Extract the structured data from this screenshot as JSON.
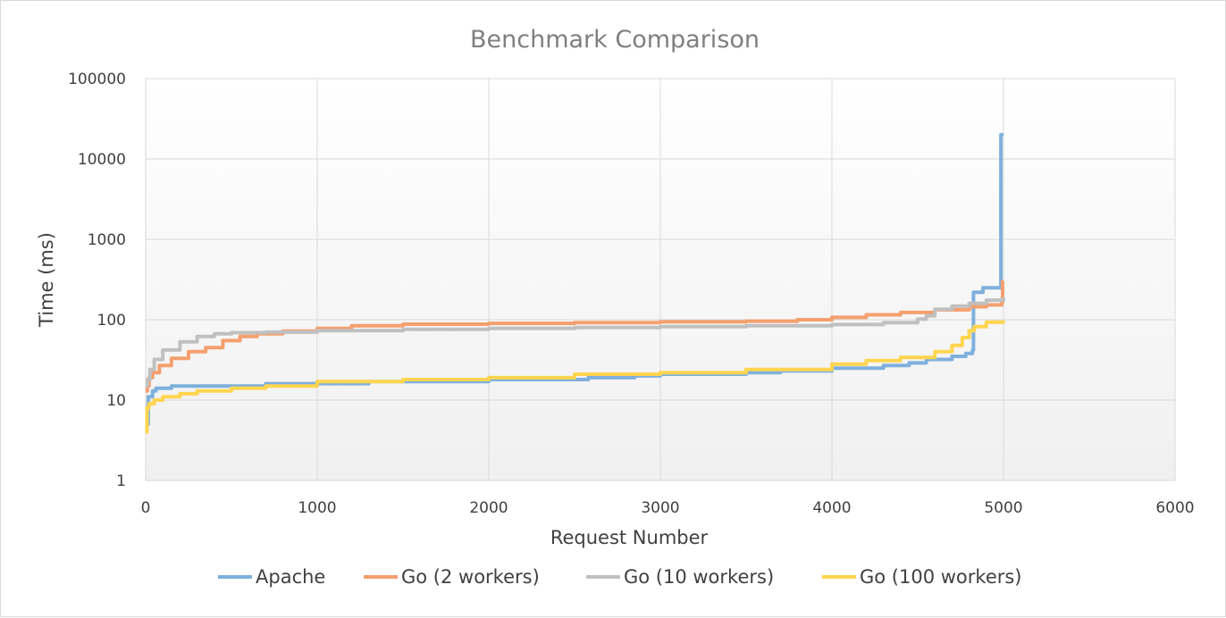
{
  "chart_data": {
    "type": "line",
    "title": "Benchmark Comparison",
    "xlabel": "Request Number",
    "ylabel": "Time (ms)",
    "xlim": [
      0,
      6000
    ],
    "ylim": [
      1,
      100000
    ],
    "yscale": "log",
    "grid": true,
    "legend_position": "bottom",
    "x_ticks": [
      0,
      1000,
      2000,
      3000,
      4000,
      5000,
      6000
    ],
    "x_tick_labels": [
      "0",
      "1000",
      "2000",
      "3000",
      "4000",
      "5000",
      "6000"
    ],
    "y_ticks": [
      1,
      10,
      100,
      1000,
      10000,
      100000
    ],
    "y_tick_labels": [
      "1",
      "10",
      "100",
      "1000",
      "10000",
      "100000"
    ],
    "series": [
      {
        "name": "Apache",
        "color": "#7fb0dc",
        "points": [
          [
            0,
            5
          ],
          [
            15,
            5
          ],
          [
            15,
            11
          ],
          [
            40,
            13
          ],
          [
            60,
            14
          ],
          [
            150,
            15
          ],
          [
            600,
            15
          ],
          [
            700,
            16
          ],
          [
            1000,
            16
          ],
          [
            1200,
            16
          ],
          [
            1300,
            17
          ],
          [
            1500,
            17
          ],
          [
            2000,
            18
          ],
          [
            2500,
            18
          ],
          [
            2580,
            19
          ],
          [
            2800,
            19
          ],
          [
            2850,
            20
          ],
          [
            3000,
            21
          ],
          [
            3500,
            22
          ],
          [
            3700,
            23
          ],
          [
            4000,
            25
          ],
          [
            4200,
            25
          ],
          [
            4300,
            27
          ],
          [
            4450,
            29
          ],
          [
            4550,
            32
          ],
          [
            4700,
            35
          ],
          [
            4780,
            38
          ],
          [
            4820,
            42
          ],
          [
            4825,
            220
          ],
          [
            4880,
            250
          ],
          [
            4980,
            250
          ],
          [
            4985,
            20000
          ],
          [
            5000,
            20000
          ]
        ]
      },
      {
        "name": "Go (2 workers)",
        "color": "#f4a06e",
        "points": [
          [
            0,
            13
          ],
          [
            10,
            15
          ],
          [
            20,
            19
          ],
          [
            40,
            22
          ],
          [
            80,
            27
          ],
          [
            150,
            33
          ],
          [
            250,
            40
          ],
          [
            350,
            45
          ],
          [
            450,
            55
          ],
          [
            550,
            62
          ],
          [
            650,
            67
          ],
          [
            800,
            72
          ],
          [
            1000,
            78
          ],
          [
            1200,
            84
          ],
          [
            1500,
            88
          ],
          [
            2000,
            90
          ],
          [
            2500,
            92
          ],
          [
            3000,
            94
          ],
          [
            3500,
            96
          ],
          [
            3800,
            100
          ],
          [
            4000,
            107
          ],
          [
            4200,
            115
          ],
          [
            4400,
            123
          ],
          [
            4600,
            133
          ],
          [
            4800,
            145
          ],
          [
            4900,
            153
          ],
          [
            4990,
            165
          ],
          [
            4995,
            300
          ],
          [
            5000,
            300
          ]
        ]
      },
      {
        "name": "Go (10 workers)",
        "color": "#c0c0c0",
        "points": [
          [
            0,
            15
          ],
          [
            10,
            18
          ],
          [
            25,
            24
          ],
          [
            50,
            32
          ],
          [
            100,
            42
          ],
          [
            200,
            53
          ],
          [
            300,
            62
          ],
          [
            400,
            67
          ],
          [
            500,
            69
          ],
          [
            700,
            70
          ],
          [
            1000,
            73
          ],
          [
            1500,
            76
          ],
          [
            2000,
            78
          ],
          [
            2500,
            80
          ],
          [
            3000,
            82
          ],
          [
            3500,
            84
          ],
          [
            4000,
            87
          ],
          [
            4300,
            92
          ],
          [
            4500,
            102
          ],
          [
            4550,
            112
          ],
          [
            4600,
            135
          ],
          [
            4700,
            148
          ],
          [
            4800,
            160
          ],
          [
            4900,
            175
          ],
          [
            5000,
            190
          ]
        ]
      },
      {
        "name": "Go (100 workers)",
        "color": "#ffd54f",
        "points": [
          [
            0,
            4
          ],
          [
            8,
            4
          ],
          [
            8,
            8
          ],
          [
            20,
            9
          ],
          [
            50,
            10
          ],
          [
            100,
            11
          ],
          [
            200,
            12
          ],
          [
            300,
            13
          ],
          [
            500,
            14
          ],
          [
            700,
            15
          ],
          [
            1000,
            17
          ],
          [
            1500,
            18
          ],
          [
            2000,
            19
          ],
          [
            2500,
            21
          ],
          [
            3000,
            22
          ],
          [
            3500,
            24
          ],
          [
            4000,
            28
          ],
          [
            4200,
            31
          ],
          [
            4400,
            34
          ],
          [
            4600,
            40
          ],
          [
            4700,
            48
          ],
          [
            4760,
            60
          ],
          [
            4800,
            73
          ],
          [
            4830,
            82
          ],
          [
            4900,
            93
          ],
          [
            5000,
            97
          ]
        ]
      }
    ]
  }
}
